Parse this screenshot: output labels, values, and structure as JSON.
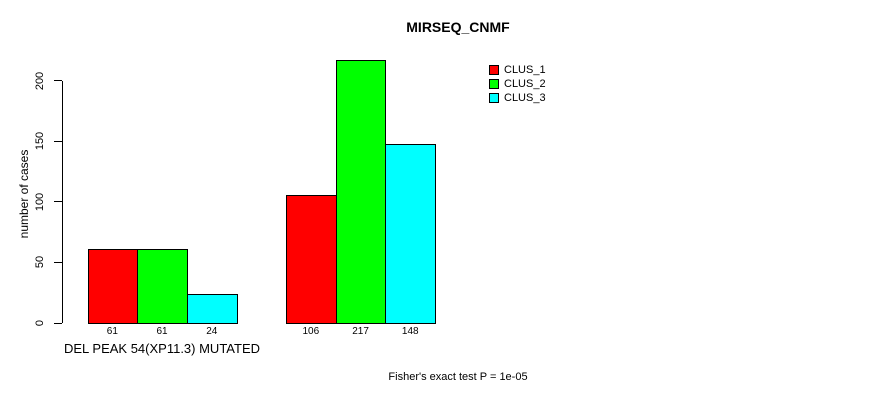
{
  "chart_data": {
    "type": "bar",
    "title": "MIRSEQ_CNMF",
    "ylabel": "number of cases",
    "xlabel": "",
    "categories": [
      "DEL PEAK 54(XP11.3) MUTATED",
      ""
    ],
    "series": [
      {
        "name": "CLUS_1",
        "color": "#ff0000",
        "values": [
          61,
          106
        ]
      },
      {
        "name": "CLUS_2",
        "color": "#00ff00",
        "values": [
          61,
          217
        ]
      },
      {
        "name": "CLUS_3",
        "color": "#00ffff",
        "values": [
          24,
          148
        ]
      }
    ],
    "bar_value_labels": [
      [
        61,
        61,
        24
      ],
      [
        106,
        217,
        148
      ]
    ],
    "yticks": [
      0,
      50,
      100,
      150,
      200
    ],
    "ylim": [
      0,
      220
    ],
    "grid": false,
    "legend_position": "top-right-inside",
    "annotation": "Fisher's exact test P = 1e-05",
    "axis_color": "#000000",
    "bar_border_color": "#000000",
    "background_color": "#ffffff"
  }
}
